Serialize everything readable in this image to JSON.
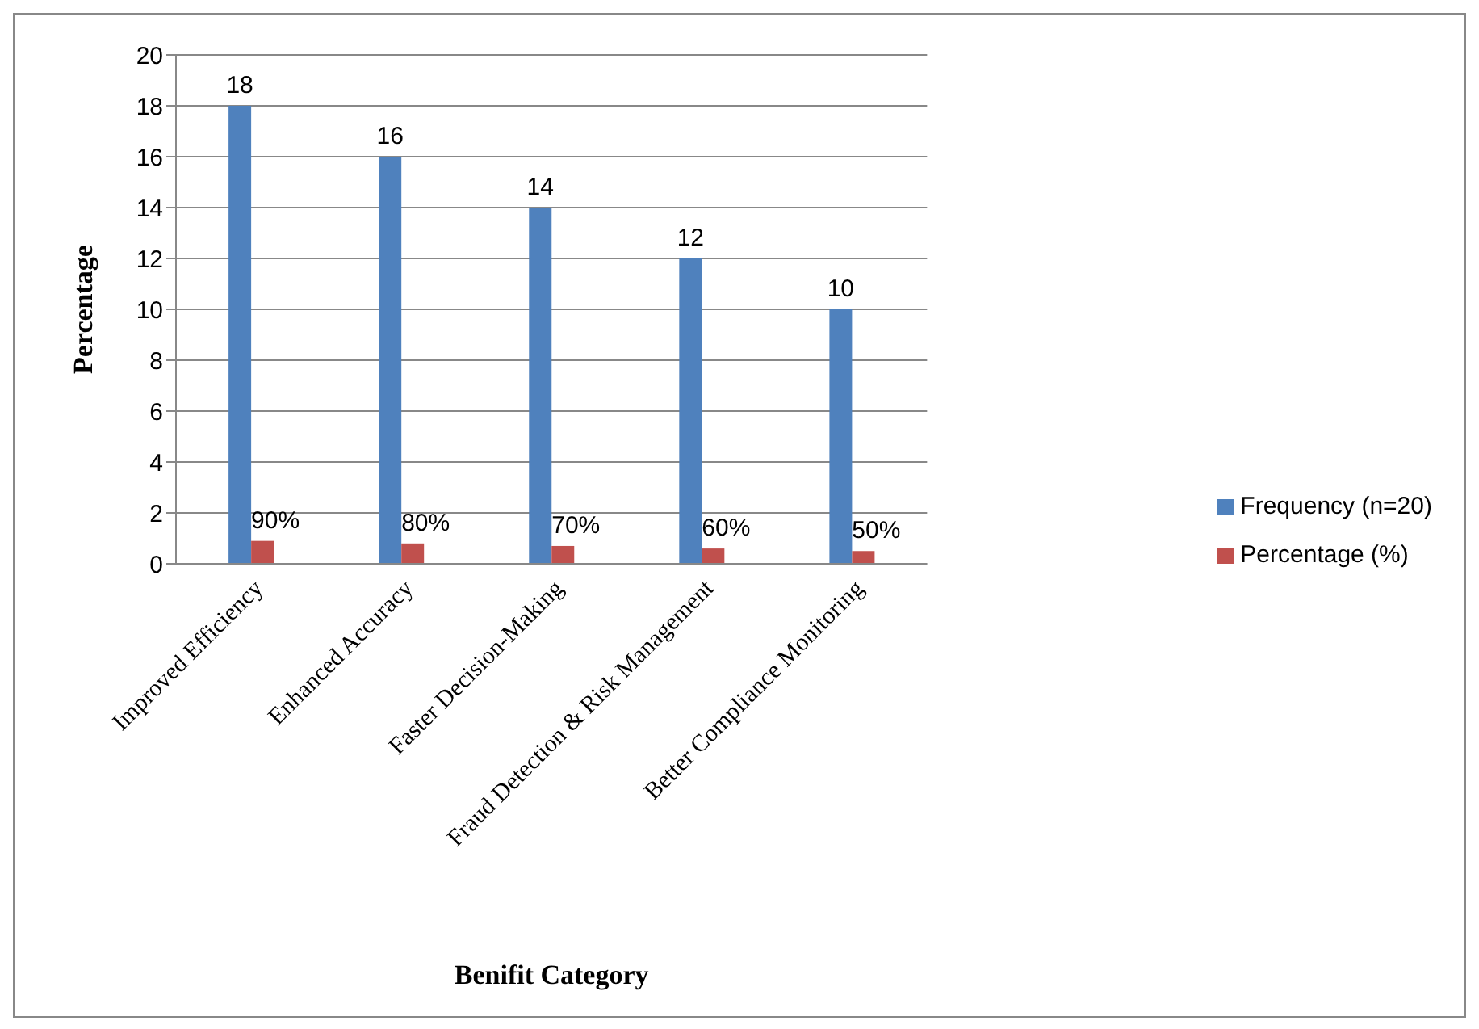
{
  "chart_data": {
    "type": "bar",
    "xlabel": "Benifit Category",
    "ylabel": "Percentage",
    "categories": [
      "Improved Efficiency",
      "Enhanced Accuracy",
      "Faster Decision-Making",
      "Fraud Detection & Risk Management",
      "Better Compliance Monitoring"
    ],
    "series": [
      {
        "name": "Frequency (n=20)",
        "color": "#4f81bd",
        "values": [
          18,
          16,
          14,
          12,
          10
        ],
        "value_labels": [
          "18",
          "16",
          "14",
          "12",
          "10"
        ]
      },
      {
        "name": "Percentage (%)",
        "color": "#c0504d",
        "values": [
          0.9,
          0.8,
          0.7,
          0.6,
          0.5
        ],
        "value_labels": [
          "90%",
          "80%",
          "70%",
          "60%",
          "50%"
        ]
      }
    ],
    "ylim": [
      0,
      20
    ],
    "yticks": [
      0,
      2,
      4,
      6,
      8,
      10,
      12,
      14,
      16,
      18,
      20
    ],
    "grid": "y",
    "legend": "right"
  }
}
